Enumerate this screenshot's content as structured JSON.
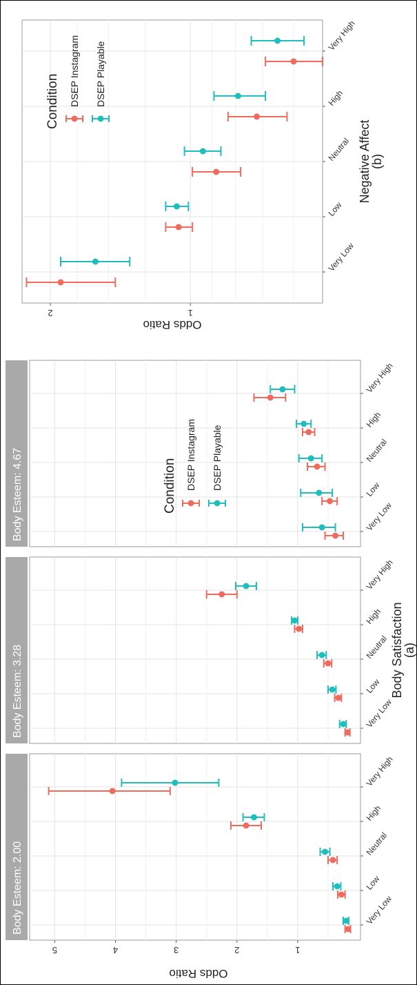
{
  "condition_colors": {
    "DSEP Instagram": "#ee6b5e",
    "DSEP Playable": "#20bdbd"
  },
  "chart_data": [
    {
      "type": "errorbar",
      "caption": "(a)",
      "xlabel": "Body Satisfaction",
      "ylabel": "Odds Ratio",
      "ylim": [
        0,
        5.3
      ],
      "yticks": [
        1,
        2,
        3,
        4,
        5
      ],
      "legend": {
        "title": "Condition",
        "entries": [
          "DSEP Instagram",
          "DSEP Playable"
        ],
        "placement": "inside-top-left of third panel"
      },
      "grid": true,
      "panels": [
        {
          "title": "Body Esteem: 2.00",
          "categories": [
            "Very Low",
            "Low",
            "Neutral",
            "High",
            "Very High"
          ],
          "series": [
            {
              "name": "DSEP Instagram",
              "values": [
                0.17,
                0.28,
                0.42,
                1.85,
                4.05
              ],
              "lower": [
                0.13,
                0.22,
                0.35,
                1.6,
                3.1
              ],
              "upper": [
                0.22,
                0.34,
                0.5,
                2.1,
                5.1
              ]
            },
            {
              "name": "DSEP Playable",
              "values": [
                0.2,
                0.35,
                0.55,
                1.72,
                3.02
              ],
              "lower": [
                0.16,
                0.29,
                0.47,
                1.55,
                2.3
              ],
              "upper": [
                0.25,
                0.42,
                0.63,
                1.9,
                3.9
              ]
            }
          ]
        },
        {
          "title": "Body Esteem: 3.28",
          "categories": [
            "Very Low",
            "Low",
            "Neutral",
            "High",
            "Very High"
          ],
          "series": [
            {
              "name": "DSEP Instagram",
              "values": [
                0.18,
                0.33,
                0.5,
                0.98,
                2.25
              ],
              "lower": [
                0.14,
                0.28,
                0.44,
                0.92,
                2.0
              ],
              "upper": [
                0.22,
                0.39,
                0.57,
                1.05,
                2.5
              ]
            },
            {
              "name": "DSEP Playable",
              "values": [
                0.25,
                0.43,
                0.6,
                1.05,
                1.85
              ],
              "lower": [
                0.2,
                0.37,
                0.53,
                1.0,
                1.68
              ],
              "upper": [
                0.31,
                0.5,
                0.68,
                1.1,
                2.02
              ]
            }
          ]
        },
        {
          "title": "Body Esteem: 4.67",
          "categories": [
            "Very Low",
            "Low",
            "Neutral",
            "High",
            "Very High"
          ],
          "series": [
            {
              "name": "DSEP Instagram",
              "values": [
                0.38,
                0.47,
                0.68,
                0.82,
                1.45
              ],
              "lower": [
                0.25,
                0.35,
                0.55,
                0.72,
                1.2
              ],
              "upper": [
                0.55,
                0.6,
                0.84,
                0.92,
                1.72
              ]
            },
            {
              "name": "DSEP Playable",
              "values": [
                0.6,
                0.65,
                0.78,
                0.9,
                1.25
              ],
              "lower": [
                0.38,
                0.43,
                0.6,
                0.78,
                1.05
              ],
              "upper": [
                0.92,
                0.95,
                0.98,
                1.02,
                1.45
              ]
            }
          ]
        }
      ]
    },
    {
      "type": "errorbar",
      "caption": "(b)",
      "xlabel": "Negative Affect",
      "ylabel": "Odds Ratio",
      "yscale": "log",
      "ylim": [
        0.52,
        2.3
      ],
      "yticks": [
        1,
        2
      ],
      "grid": true,
      "legend": {
        "title": "Condition",
        "entries": [
          "DSEP Instagram",
          "DSEP Playable"
        ],
        "placement": "inside-top-right"
      },
      "categories": [
        "Very Low",
        "Low",
        "Neutral",
        "High",
        "Very High"
      ],
      "series": [
        {
          "name": "DSEP Instagram",
          "values": [
            1.9,
            1.06,
            0.88,
            0.72,
            0.6
          ],
          "lower": [
            1.45,
            0.99,
            0.78,
            0.62,
            0.52
          ],
          "upper": [
            2.25,
            1.13,
            0.99,
            0.83,
            0.69
          ]
        },
        {
          "name": "DSEP Playable",
          "values": [
            1.6,
            1.07,
            0.94,
            0.79,
            0.65
          ],
          "lower": [
            1.35,
            1.01,
            0.86,
            0.69,
            0.57
          ],
          "upper": [
            1.9,
            1.13,
            1.03,
            0.89,
            0.74
          ]
        }
      ]
    }
  ]
}
